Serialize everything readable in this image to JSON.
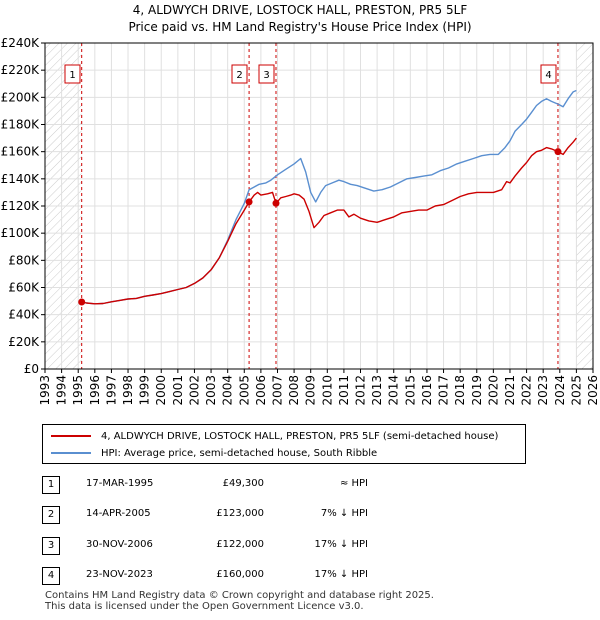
{
  "header": {
    "line1": "4, ALDWYCH DRIVE, LOSTOCK HALL, PRESTON, PR5 5LF",
    "line2": "Price paid vs. HM Land Registry's House Price Index (HPI)"
  },
  "chart_data": {
    "type": "line",
    "title": "4, ALDWYCH DRIVE, LOSTOCK HALL, PRESTON, PR5 5LF",
    "xlabel": "",
    "ylabel": "",
    "xlim": [
      1993,
      2026
    ],
    "ylim": [
      0,
      240000
    ],
    "y_ticks": [
      0,
      20000,
      40000,
      60000,
      80000,
      100000,
      120000,
      140000,
      160000,
      180000,
      200000,
      220000,
      240000
    ],
    "y_tick_labels": [
      "£0",
      "£20K",
      "£40K",
      "£60K",
      "£80K",
      "£100K",
      "£120K",
      "£140K",
      "£160K",
      "£180K",
      "£200K",
      "£220K",
      "£240K"
    ],
    "x_ticks": [
      1993,
      1994,
      1995,
      1996,
      1997,
      1998,
      1999,
      2000,
      2001,
      2002,
      2003,
      2004,
      2005,
      2006,
      2007,
      2008,
      2009,
      2010,
      2011,
      2012,
      2013,
      2014,
      2015,
      2016,
      2017,
      2018,
      2019,
      2020,
      2021,
      2022,
      2023,
      2024,
      2025,
      2026
    ],
    "x_tick_labels": [
      "1993",
      "1994",
      "1995",
      "1996",
      "1997",
      "1998",
      "1999",
      "2000",
      "2001",
      "2002",
      "2003",
      "2004",
      "2005",
      "2006",
      "2007",
      "2008",
      "2009",
      "2010",
      "2011",
      "2012",
      "2013",
      "2014",
      "2015",
      "2016",
      "2017",
      "2018",
      "2019",
      "2020",
      "2021",
      "2022",
      "2023",
      "2024",
      "2025",
      "2026"
    ],
    "grid": true,
    "series": [
      {
        "name": "4, ALDWYCH DRIVE, LOSTOCK HALL, PRESTON, PR5 5LF (semi-detached house)",
        "color": "#cc0000",
        "points": [
          [
            1995.21,
            49300
          ],
          [
            1995.5,
            48600
          ],
          [
            1996.0,
            48000
          ],
          [
            1996.5,
            48200
          ],
          [
            1997.0,
            49500
          ],
          [
            1997.5,
            50500
          ],
          [
            1998.0,
            51500
          ],
          [
            1998.5,
            52000
          ],
          [
            1999.0,
            53500
          ],
          [
            1999.5,
            54500
          ],
          [
            2000.0,
            55500
          ],
          [
            2000.5,
            57000
          ],
          [
            2001.0,
            58500
          ],
          [
            2001.5,
            60000
          ],
          [
            2002.0,
            63000
          ],
          [
            2002.5,
            67000
          ],
          [
            2003.0,
            73000
          ],
          [
            2003.5,
            82000
          ],
          [
            2004.0,
            94000
          ],
          [
            2004.5,
            107000
          ],
          [
            2005.0,
            117000
          ],
          [
            2005.29,
            123000
          ],
          [
            2005.6,
            128000
          ],
          [
            2005.8,
            130000
          ],
          [
            2006.0,
            128000
          ],
          [
            2006.4,
            129000
          ],
          [
            2006.7,
            130000
          ],
          [
            2006.91,
            122000
          ],
          [
            2007.2,
            126000
          ],
          [
            2007.5,
            127000
          ],
          [
            2007.8,
            128000
          ],
          [
            2008.0,
            129000
          ],
          [
            2008.3,
            128000
          ],
          [
            2008.6,
            125000
          ],
          [
            2008.9,
            116000
          ],
          [
            2009.2,
            104000
          ],
          [
            2009.5,
            108000
          ],
          [
            2009.8,
            113000
          ],
          [
            2010.2,
            115000
          ],
          [
            2010.6,
            117000
          ],
          [
            2011.0,
            117000
          ],
          [
            2011.3,
            112000
          ],
          [
            2011.6,
            114000
          ],
          [
            2012.0,
            111000
          ],
          [
            2012.5,
            109000
          ],
          [
            2013.0,
            108000
          ],
          [
            2013.5,
            110000
          ],
          [
            2014.0,
            112000
          ],
          [
            2014.5,
            115000
          ],
          [
            2015.0,
            116000
          ],
          [
            2015.5,
            117000
          ],
          [
            2016.0,
            117000
          ],
          [
            2016.5,
            120000
          ],
          [
            2017.0,
            121000
          ],
          [
            2017.5,
            124000
          ],
          [
            2018.0,
            127000
          ],
          [
            2018.5,
            129000
          ],
          [
            2019.0,
            130000
          ],
          [
            2019.5,
            130000
          ],
          [
            2020.0,
            130000
          ],
          [
            2020.5,
            132000
          ],
          [
            2020.8,
            138000
          ],
          [
            2021.0,
            137000
          ],
          [
            2021.3,
            142000
          ],
          [
            2021.7,
            148000
          ],
          [
            2022.0,
            152000
          ],
          [
            2022.3,
            157000
          ],
          [
            2022.6,
            160000
          ],
          [
            2022.9,
            161000
          ],
          [
            2023.2,
            163000
          ],
          [
            2023.5,
            162000
          ],
          [
            2023.89,
            160000
          ],
          [
            2024.2,
            158000
          ],
          [
            2024.5,
            163000
          ],
          [
            2024.8,
            167000
          ],
          [
            2025.0,
            170000
          ]
        ]
      },
      {
        "name": "HPI: Average price, semi-detached house, South Ribble",
        "color": "#5a8fd0",
        "points": [
          [
            1995.21,
            49300
          ],
          [
            1995.5,
            48600
          ],
          [
            1996.0,
            48000
          ],
          [
            1996.5,
            48200
          ],
          [
            1997.0,
            49500
          ],
          [
            1997.5,
            50500
          ],
          [
            1998.0,
            51500
          ],
          [
            1998.5,
            52000
          ],
          [
            1999.0,
            53500
          ],
          [
            1999.5,
            54500
          ],
          [
            2000.0,
            55500
          ],
          [
            2000.5,
            57000
          ],
          [
            2001.0,
            58500
          ],
          [
            2001.5,
            60000
          ],
          [
            2002.0,
            63000
          ],
          [
            2002.5,
            67000
          ],
          [
            2003.0,
            73000
          ],
          [
            2003.5,
            82000
          ],
          [
            2004.0,
            95000
          ],
          [
            2004.5,
            110000
          ],
          [
            2005.0,
            122000
          ],
          [
            2005.29,
            132000
          ],
          [
            2005.6,
            134000
          ],
          [
            2005.9,
            136000
          ],
          [
            2006.3,
            137000
          ],
          [
            2006.6,
            139000
          ],
          [
            2007.0,
            143000
          ],
          [
            2007.5,
            147000
          ],
          [
            2008.0,
            151000
          ],
          [
            2008.4,
            155000
          ],
          [
            2008.7,
            145000
          ],
          [
            2009.0,
            130000
          ],
          [
            2009.3,
            123000
          ],
          [
            2009.6,
            130000
          ],
          [
            2009.9,
            135000
          ],
          [
            2010.3,
            137000
          ],
          [
            2010.7,
            139000
          ],
          [
            2011.0,
            138000
          ],
          [
            2011.4,
            136000
          ],
          [
            2011.8,
            135000
          ],
          [
            2012.3,
            133000
          ],
          [
            2012.8,
            131000
          ],
          [
            2013.3,
            132000
          ],
          [
            2013.8,
            134000
          ],
          [
            2014.3,
            137000
          ],
          [
            2014.8,
            140000
          ],
          [
            2015.3,
            141000
          ],
          [
            2015.8,
            142000
          ],
          [
            2016.3,
            143000
          ],
          [
            2016.8,
            146000
          ],
          [
            2017.3,
            148000
          ],
          [
            2017.8,
            151000
          ],
          [
            2018.3,
            153000
          ],
          [
            2018.8,
            155000
          ],
          [
            2019.3,
            157000
          ],
          [
            2019.8,
            158000
          ],
          [
            2020.3,
            158000
          ],
          [
            2020.7,
            163000
          ],
          [
            2021.0,
            168000
          ],
          [
            2021.3,
            175000
          ],
          [
            2021.7,
            180000
          ],
          [
            2022.0,
            184000
          ],
          [
            2022.3,
            189000
          ],
          [
            2022.6,
            194000
          ],
          [
            2022.9,
            197000
          ],
          [
            2023.2,
            199000
          ],
          [
            2023.5,
            197000
          ],
          [
            2023.89,
            195000
          ],
          [
            2024.2,
            193000
          ],
          [
            2024.5,
            199000
          ],
          [
            2024.8,
            204000
          ],
          [
            2025.0,
            205000
          ]
        ]
      }
    ],
    "sales": [
      {
        "label": "1",
        "x": 1995.21,
        "y": 49300
      },
      {
        "label": "2",
        "x": 2005.29,
        "y": 123000
      },
      {
        "label": "3",
        "x": 2006.91,
        "y": 122000
      },
      {
        "label": "4",
        "x": 2023.89,
        "y": 160000
      }
    ],
    "hatched_ranges": [
      [
        1993,
        1995.21
      ],
      [
        2025.0,
        2026
      ]
    ]
  },
  "legend": {
    "items": [
      {
        "label": "4, ALDWYCH DRIVE, LOSTOCK HALL, PRESTON, PR5 5LF (semi-detached house)",
        "color": "#cc0000"
      },
      {
        "label": "HPI: Average price, semi-detached house, South Ribble",
        "color": "#5a8fd0"
      }
    ]
  },
  "transactions": [
    {
      "num": "1",
      "date": "17-MAR-1995",
      "price": "£49,300",
      "hpi": "≈ HPI"
    },
    {
      "num": "2",
      "date": "14-APR-2005",
      "price": "£123,000",
      "hpi": "7% ↓ HPI"
    },
    {
      "num": "3",
      "date": "30-NOV-2006",
      "price": "£122,000",
      "hpi": "17% ↓ HPI"
    },
    {
      "num": "4",
      "date": "23-NOV-2023",
      "price": "£160,000",
      "hpi": "17% ↓ HPI"
    }
  ],
  "footer": {
    "line1": "Contains HM Land Registry data © Crown copyright and database right 2025.",
    "line2": "This data is licensed under the Open Government Licence v3.0."
  }
}
